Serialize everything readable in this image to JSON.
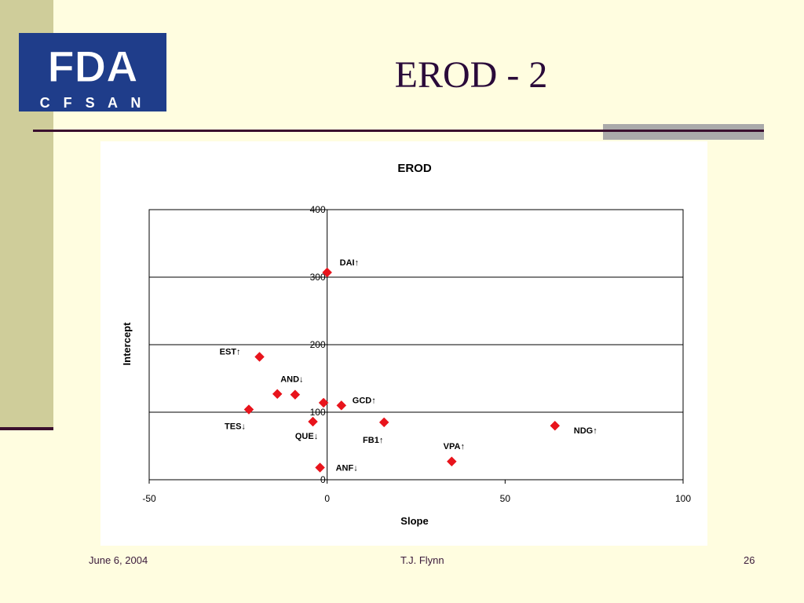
{
  "slide": {
    "title": "EROD - 2",
    "logo_top": "FDA",
    "logo_bottom": "C F S A N"
  },
  "footer": {
    "date": "June 6, 2004",
    "author": "T.J. Flynn",
    "page": "26"
  },
  "colors": {
    "background": "#fffde0",
    "accent_band": "#cfcd9a",
    "rule": "#3a0f2e",
    "logo_blue": "#1f3d8a",
    "marker": "#e8141c"
  },
  "chart_data": {
    "type": "scatter",
    "title": "EROD",
    "xlabel": "Slope",
    "ylabel": "Intercept",
    "xlim": [
      -50,
      100
    ],
    "ylim": [
      0,
      400
    ],
    "xticks": [
      "-50",
      "0",
      "50",
      "100"
    ],
    "yticks": [
      "0",
      "100",
      "200",
      "300",
      "400"
    ],
    "grid": "horizontal",
    "legend": "none",
    "points": [
      {
        "label": "DAI↑",
        "x": 0,
        "y": 307
      },
      {
        "label": "EST↑",
        "x": -19,
        "y": 182
      },
      {
        "label": "AND↓",
        "x": -9,
        "y": 126
      },
      {
        "label": "",
        "x": -14,
        "y": 127
      },
      {
        "label": "GCD↑",
        "x": 4,
        "y": 110
      },
      {
        "label": "",
        "x": -1,
        "y": 114
      },
      {
        "label": "TES↓",
        "x": -22,
        "y": 104
      },
      {
        "label": "QUE↓",
        "x": -4,
        "y": 86
      },
      {
        "label": "FB1↑",
        "x": 16,
        "y": 85
      },
      {
        "label": "NDG↑",
        "x": 64,
        "y": 80
      },
      {
        "label": "VPA↑",
        "x": 35,
        "y": 27
      },
      {
        "label": "ANF↓",
        "x": -2,
        "y": 18
      }
    ]
  }
}
